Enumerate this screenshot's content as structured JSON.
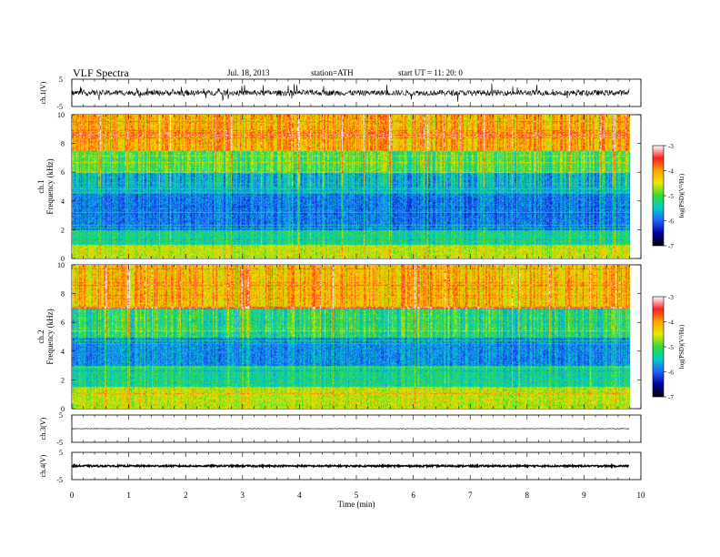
{
  "header": {
    "title": "VLF  Spectra",
    "date": "Jul.  18,  2013",
    "station": "station=ATH",
    "start_time": "start  UT  =    11: 20: 0"
  },
  "colorbar": {
    "label": "log(PSD)(V²/Hz)",
    "ticks": [
      "-3",
      "-4",
      "-5",
      "-6",
      "-7"
    ],
    "colors": [
      "#ffffff",
      "#ff1f1f",
      "#ffa500",
      "#e8e800",
      "#33dd33",
      "#00cccc",
      "#2060ff",
      "#0000a0",
      "#000000"
    ]
  },
  "chart_data": [
    {
      "type": "line",
      "panel": "ch1-waveform",
      "ylabel": "ch.1(V)",
      "ylim": [
        -5,
        5
      ],
      "yticks": [
        "5",
        "-5"
      ],
      "xlim": [
        0,
        10
      ],
      "data_end_min": 9.8,
      "baseline_v": 0.0,
      "noise_amplitude_v": 1.0,
      "spike_amplitude_v": 3.5
    },
    {
      "type": "heatmap",
      "panel": "ch1-spectrogram",
      "title": "ch.1",
      "ylabel": "Frequency (kHz)",
      "xlim": [
        0,
        10
      ],
      "ylim": [
        0,
        10
      ],
      "yticks": [
        "0",
        "2",
        "4",
        "6",
        "8",
        "10"
      ],
      "color_scale": {
        "min": -7,
        "max": -3,
        "unit": "log(PSD)(V²/Hz)"
      },
      "data_end_min": 9.8,
      "dominant_bands": [
        {
          "range_khz": [
            0,
            1
          ],
          "level": -4.6
        },
        {
          "range_khz": [
            1,
            2
          ],
          "level": -5.3
        },
        {
          "range_khz": [
            2,
            4.5
          ],
          "level": -5.9
        },
        {
          "range_khz": [
            4.5,
            6
          ],
          "level": -5.6
        },
        {
          "range_khz": [
            6,
            7.5
          ],
          "level": -5.0
        },
        {
          "range_khz": [
            7.5,
            10
          ],
          "level": -4.1
        }
      ]
    },
    {
      "type": "heatmap",
      "panel": "ch2-spectrogram",
      "title": "ch.2",
      "ylabel": "Frequency (kHz)",
      "xlim": [
        0,
        10
      ],
      "ylim": [
        0,
        10
      ],
      "yticks": [
        "0",
        "2",
        "4",
        "6",
        "8",
        "10"
      ],
      "color_scale": {
        "min": -7,
        "max": -3,
        "unit": "log(PSD)(V²/Hz)"
      },
      "data_end_min": 9.8,
      "dominant_bands": [
        {
          "range_khz": [
            0,
            1.5
          ],
          "level": -4.6
        },
        {
          "range_khz": [
            1.5,
            3
          ],
          "level": -5.3
        },
        {
          "range_khz": [
            3,
            5
          ],
          "level": -5.8
        },
        {
          "range_khz": [
            5,
            7
          ],
          "level": -5.2
        },
        {
          "range_khz": [
            7,
            10
          ],
          "level": -4.2
        }
      ]
    },
    {
      "type": "line",
      "panel": "ch3-waveform",
      "ylabel": "ch.3(V)",
      "ylim": [
        -5,
        5
      ],
      "yticks": [
        "5",
        "-5"
      ],
      "xlim": [
        0,
        10
      ],
      "data_end_min": 9.8,
      "baseline_v": 0.0,
      "noise_amplitude_v": 0.1
    },
    {
      "type": "line",
      "panel": "ch4-waveform",
      "ylabel": "ch.4(V)",
      "ylim": [
        -5,
        5
      ],
      "yticks": [
        "5",
        "-5"
      ],
      "xlim": [
        0,
        10
      ],
      "data_end_min": 9.8,
      "baseline_v": 0.0,
      "noise_amplitude_v": 0.3
    }
  ],
  "xaxis": {
    "label": "Time  (min)",
    "ticks": [
      "0",
      "1",
      "2",
      "3",
      "4",
      "5",
      "6",
      "7",
      "8",
      "9",
      "10"
    ]
  }
}
